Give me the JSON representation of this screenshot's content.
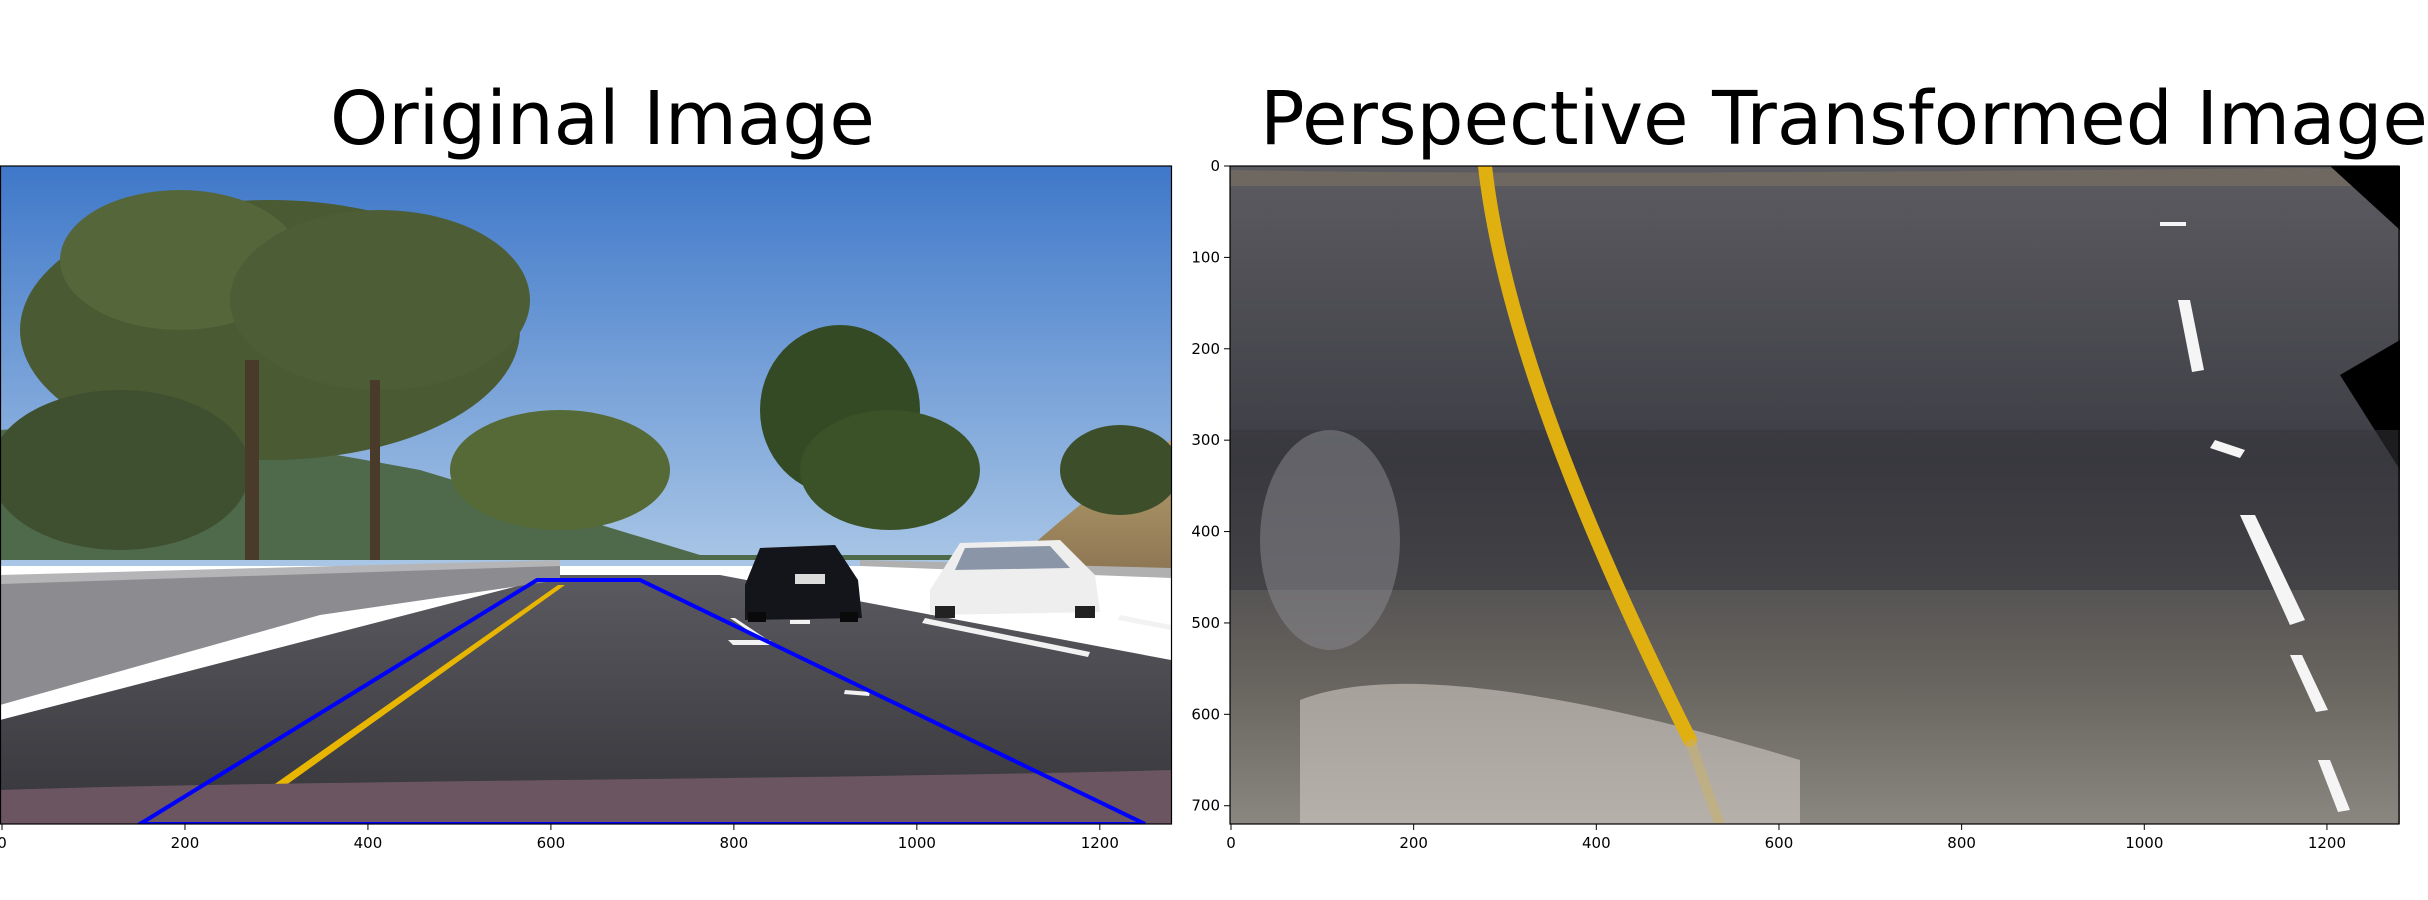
{
  "figure": {
    "panels": [
      {
        "title": "Original Image",
        "x_ticks": [
          "0",
          "200",
          "400",
          "600",
          "800",
          "1000",
          "1200"
        ],
        "y_ticks": []
      },
      {
        "title": "Perspective Transformed Image",
        "x_ticks": [
          "0",
          "200",
          "400",
          "600",
          "800",
          "1000",
          "1200"
        ],
        "y_ticks": [
          "0",
          "100",
          "200",
          "300",
          "400",
          "500",
          "600",
          "700"
        ]
      }
    ],
    "colors": {
      "roi_outline": "#0000ff",
      "yellow_lane": "#e8b600",
      "white_lane": "#f2f2f2",
      "sky": "#5f93d6",
      "road": "#3f3f44"
    }
  }
}
